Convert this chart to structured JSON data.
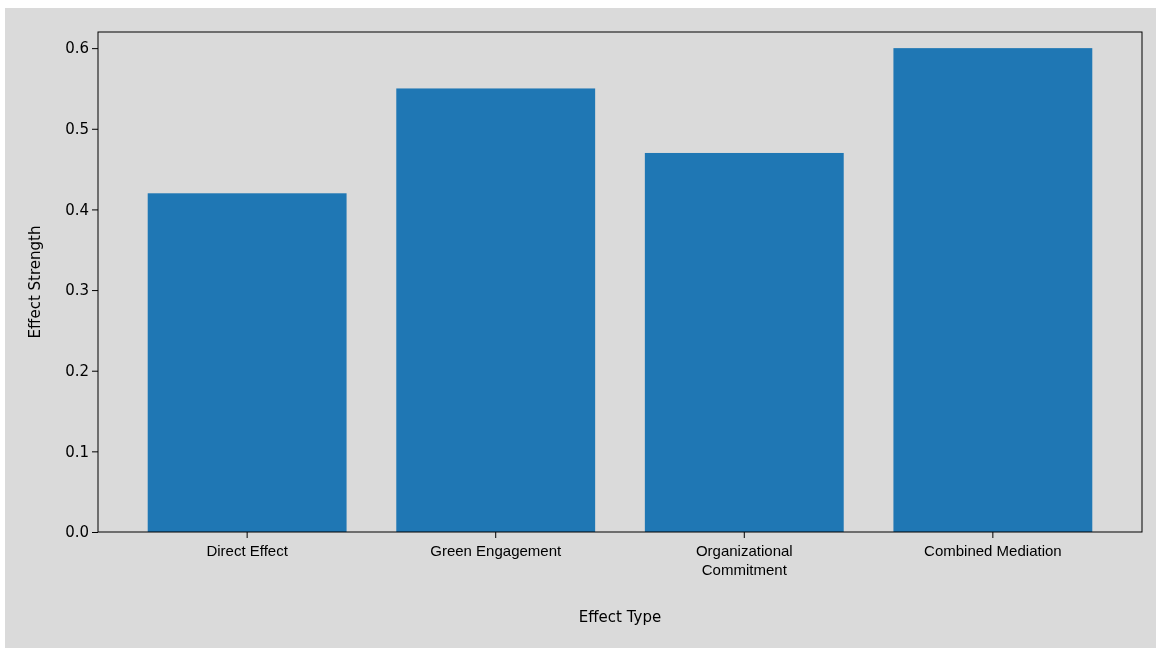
{
  "chart_data": {
    "type": "bar",
    "xlabel": "Effect Type",
    "ylabel": "Effect Strength",
    "categories": [
      "Direct Effect",
      "Green Engagement",
      "Organizational\nCommitment",
      "Combined Mediation"
    ],
    "values": [
      0.42,
      0.55,
      0.47,
      0.6
    ],
    "color": "#1f77b4",
    "ylim": [
      0,
      0.62
    ],
    "yticks": [
      {
        "value": 0,
        "label": "0.0"
      },
      {
        "value": 0.1,
        "label": "0.1"
      },
      {
        "value": 0.2,
        "label": "0.2"
      },
      {
        "value": 0.3,
        "label": "0.3"
      },
      {
        "value": 0.4,
        "label": "0.4"
      },
      {
        "value": 0.5,
        "label": "0.5"
      },
      {
        "value": 0.6,
        "label": "0.6"
      }
    ],
    "grid": false,
    "legend": false
  }
}
